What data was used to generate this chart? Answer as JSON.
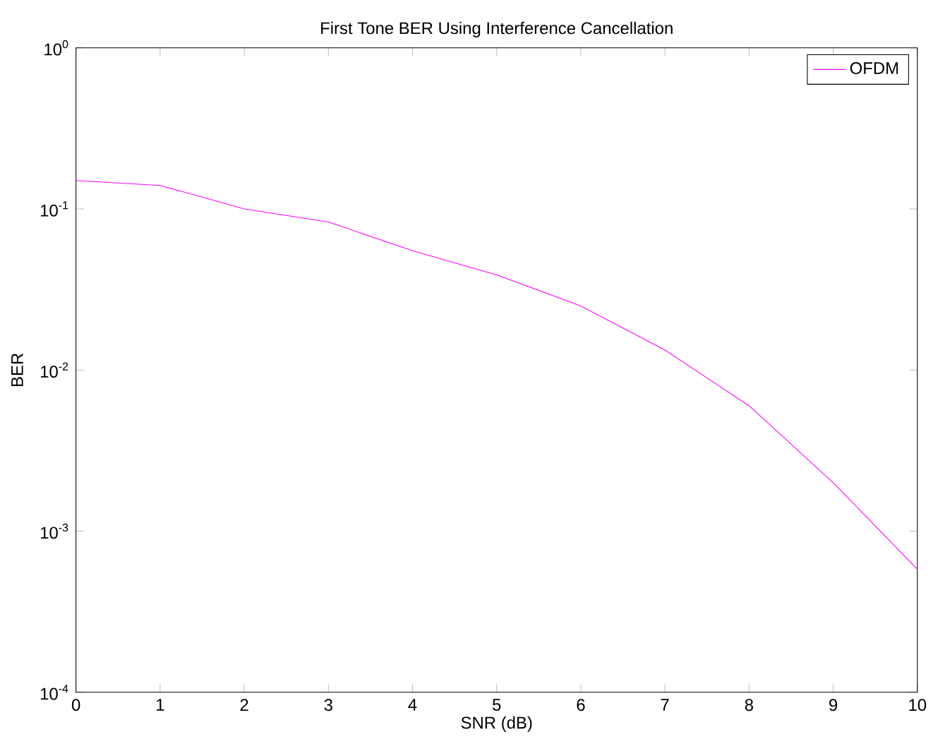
{
  "chart_data": {
    "type": "line",
    "title": "First Tone BER Using Interference Cancellation",
    "xlabel": "SNR (dB)",
    "ylabel": "BER",
    "log": "y",
    "x": [
      0,
      1,
      2,
      3,
      4,
      5,
      6,
      7,
      8,
      9,
      10
    ],
    "series": [
      {
        "name": "OFDM",
        "color": "#ff00ff",
        "values": [
          0.15,
          0.14,
          0.1,
          0.083,
          0.055,
          0.039,
          0.025,
          0.0133,
          0.006,
          0.002,
          0.00058
        ]
      }
    ],
    "xlim": [
      0,
      10
    ],
    "ylim": [
      0.0001,
      1
    ],
    "xticks": [
      0,
      1,
      2,
      3,
      4,
      5,
      6,
      7,
      8,
      9,
      10
    ],
    "yticks": [
      {
        "value": 0.0001,
        "label": "10$^{-4}$"
      },
      {
        "value": 0.001,
        "label": "10$^{-3}$"
      },
      {
        "value": 0.01,
        "label": "10$^{-2}$"
      },
      {
        "value": 0.1,
        "label": "10$^{-1}$"
      },
      {
        "value": 1,
        "label": "10$^{0}$"
      }
    ],
    "grid": false,
    "legend": "top right",
    "marker": "none",
    "line_style": "solid"
  }
}
